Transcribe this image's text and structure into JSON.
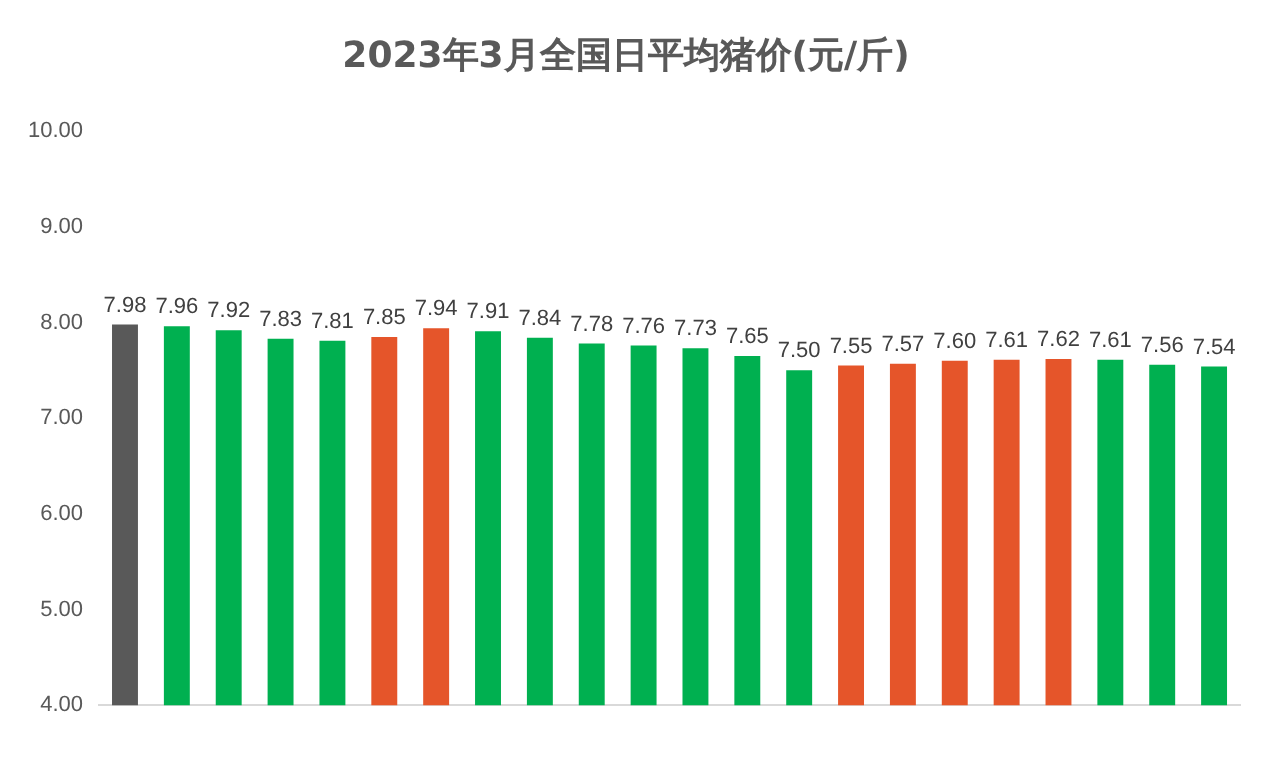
{
  "chart_data": {
    "type": "bar",
    "title": "2023年3月全国日平均猪价(元/斤)",
    "categories": [
      null,
      null,
      null,
      null,
      null,
      null,
      null,
      null,
      null,
      null,
      null,
      null,
      null,
      null,
      null,
      null,
      null,
      null,
      null,
      null,
      null,
      null
    ],
    "values": [
      7.98,
      7.96,
      7.92,
      7.83,
      7.81,
      7.85,
      7.94,
      7.91,
      7.84,
      7.78,
      7.76,
      7.73,
      7.65,
      7.5,
      7.55,
      7.57,
      7.6,
      7.61,
      7.62,
      7.61,
      7.56,
      7.54
    ],
    "value_labels": [
      "7.98",
      "7.96",
      "7.92",
      "7.83",
      "7.81",
      "7.85",
      "7.94",
      "7.91",
      "7.84",
      "7.78",
      "7.76",
      "7.73",
      "7.65",
      "7.50",
      "7.55",
      "7.57",
      "7.60",
      "7.61",
      "7.62",
      "7.61",
      "7.56",
      "7.54"
    ],
    "colors": [
      "#595959",
      "#00b050",
      "#00b050",
      "#00b050",
      "#00b050",
      "#e5552a",
      "#e5552a",
      "#00b050",
      "#00b050",
      "#00b050",
      "#00b050",
      "#00b050",
      "#00b050",
      "#00b050",
      "#e5552a",
      "#e5552a",
      "#e5552a",
      "#e5552a",
      "#e5552a",
      "#00b050",
      "#00b050",
      "#00b050"
    ],
    "ylim": [
      4,
      10
    ],
    "yticks": [
      {
        "value": 4,
        "label": "4.00"
      },
      {
        "value": 5,
        "label": "5.00"
      },
      {
        "value": 6,
        "label": "6.00"
      },
      {
        "value": 7,
        "label": "7.00"
      },
      {
        "value": 8,
        "label": "8.00"
      },
      {
        "value": 9,
        "label": "9.00"
      },
      {
        "value": 10,
        "label": "10.00"
      }
    ],
    "grid": false,
    "legend": false
  }
}
